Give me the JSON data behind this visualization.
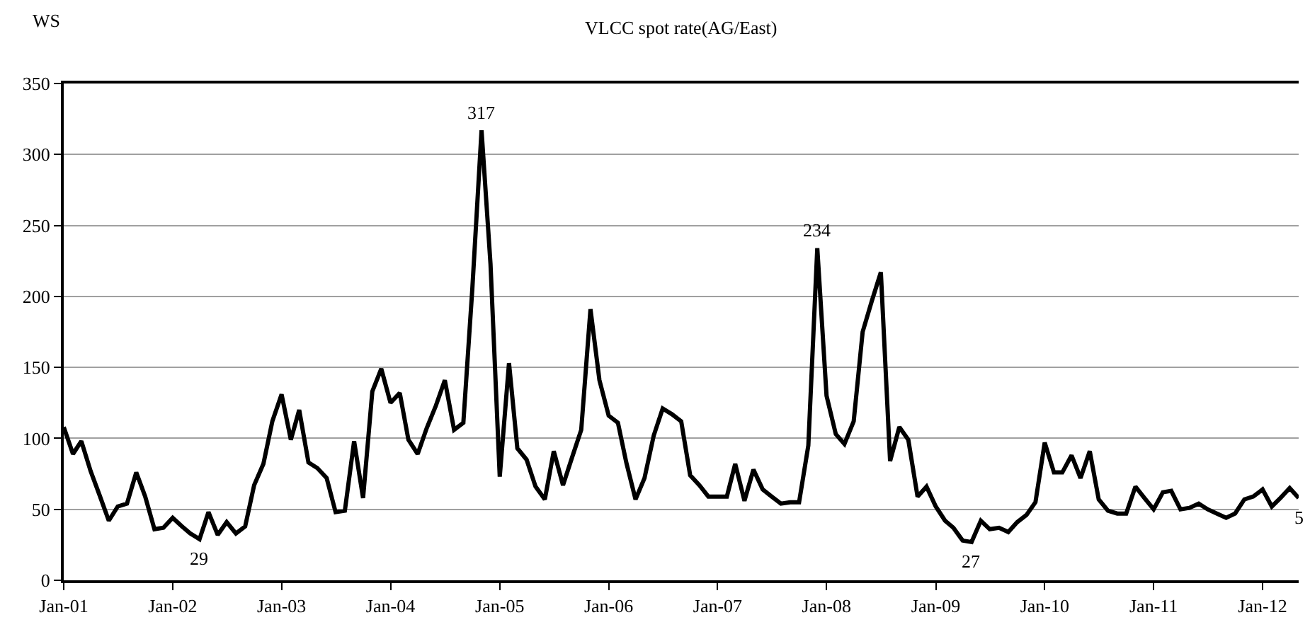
{
  "chart_data": {
    "type": "line",
    "title": "VLCC spot rate(AG/East)",
    "ylabel": "WS",
    "x": [
      "2001-01",
      "2001-02",
      "2001-03",
      "2001-04",
      "2001-05",
      "2001-06",
      "2001-07",
      "2001-08",
      "2001-09",
      "2001-10",
      "2001-11",
      "2001-12",
      "2002-01",
      "2002-02",
      "2002-03",
      "2002-04",
      "2002-05",
      "2002-06",
      "2002-07",
      "2002-08",
      "2002-09",
      "2002-10",
      "2002-11",
      "2002-12",
      "2003-01",
      "2003-02",
      "2003-03",
      "2003-04",
      "2003-05",
      "2003-06",
      "2003-07",
      "2003-08",
      "2003-09",
      "2003-10",
      "2003-11",
      "2003-12",
      "2004-01",
      "2004-02",
      "2004-03",
      "2004-04",
      "2004-05",
      "2004-06",
      "2004-07",
      "2004-08",
      "2004-09",
      "2004-10",
      "2004-11",
      "2004-12",
      "2005-01",
      "2005-02",
      "2005-03",
      "2005-04",
      "2005-05",
      "2005-06",
      "2005-07",
      "2005-08",
      "2005-09",
      "2005-10",
      "2005-11",
      "2005-12",
      "2006-01",
      "2006-02",
      "2006-03",
      "2006-04",
      "2006-05",
      "2006-06",
      "2006-07",
      "2006-08",
      "2006-09",
      "2006-10",
      "2006-11",
      "2006-12",
      "2007-01",
      "2007-02",
      "2007-03",
      "2007-04",
      "2007-05",
      "2007-06",
      "2007-07",
      "2007-08",
      "2007-09",
      "2007-10",
      "2007-11",
      "2007-12",
      "2008-01",
      "2008-02",
      "2008-03",
      "2008-04",
      "2008-05",
      "2008-06",
      "2008-07",
      "2008-08",
      "2008-09",
      "2008-10",
      "2008-11",
      "2008-12",
      "2009-01",
      "2009-02",
      "2009-03",
      "2009-04",
      "2009-05",
      "2009-06",
      "2009-07",
      "2009-08",
      "2009-09",
      "2009-10",
      "2009-11",
      "2009-12",
      "2010-01",
      "2010-02",
      "2010-03",
      "2010-04",
      "2010-05",
      "2010-06",
      "2010-07",
      "2010-08",
      "2010-09",
      "2010-10",
      "2010-11",
      "2010-12",
      "2011-01",
      "2011-02",
      "2011-03",
      "2011-04",
      "2011-05",
      "2011-06",
      "2011-07",
      "2011-08",
      "2011-09",
      "2011-10",
      "2011-11",
      "2011-12",
      "2012-01",
      "2012-02",
      "2012-03",
      "2012-04",
      "2012-05"
    ],
    "series": [
      {
        "color": "#000000",
        "values": [
          108,
          89,
          98,
          77,
          60,
          42,
          52,
          54,
          76,
          59,
          36,
          37,
          44,
          38,
          33,
          29,
          48,
          32,
          41,
          33,
          38,
          67,
          82,
          112,
          131,
          99,
          120,
          83,
          79,
          72,
          48,
          49,
          98,
          58,
          133,
          149,
          125,
          132,
          99,
          89,
          107,
          123,
          141,
          106,
          111,
          205,
          317,
          223,
          73,
          153,
          93,
          85,
          66,
          57,
          91,
          67,
          87,
          106,
          191,
          141,
          116,
          111,
          83,
          57,
          72,
          102,
          121,
          117,
          112,
          74,
          67,
          59,
          59,
          59,
          82,
          56,
          78,
          64,
          59,
          54,
          55,
          55,
          95,
          234,
          130,
          103,
          96,
          112,
          175,
          197,
          217,
          84,
          108,
          99,
          59,
          66,
          52,
          42,
          37,
          28,
          27,
          42,
          36,
          37,
          34,
          41,
          46,
          55,
          97,
          76,
          76,
          88,
          72,
          91,
          57,
          49,
          47,
          47,
          66,
          58,
          50,
          62,
          63,
          50,
          51,
          54,
          50,
          47,
          44,
          47,
          57,
          59,
          64,
          52,
          58,
          65,
          58
        ]
      }
    ],
    "xlim": [
      "2001-01",
      "2012-05"
    ],
    "xticks": [
      {
        "value": "2001-01",
        "label": "Jan-01"
      },
      {
        "value": "2002-01",
        "label": "Jan-02"
      },
      {
        "value": "2003-01",
        "label": "Jan-03"
      },
      {
        "value": "2004-01",
        "label": "Jan-04"
      },
      {
        "value": "2005-01",
        "label": "Jan-05"
      },
      {
        "value": "2006-01",
        "label": "Jan-06"
      },
      {
        "value": "2007-01",
        "label": "Jan-07"
      },
      {
        "value": "2008-01",
        "label": "Jan-08"
      },
      {
        "value": "2009-01",
        "label": "Jan-09"
      },
      {
        "value": "2010-01",
        "label": "Jan-10"
      },
      {
        "value": "2011-01",
        "label": "Jan-11"
      },
      {
        "value": "2012-01",
        "label": "Jan-12"
      }
    ],
    "ylim": [
      0,
      350
    ],
    "yticks": [
      0,
      50,
      100,
      150,
      200,
      250,
      300,
      350
    ],
    "grid": "y",
    "marker": "none",
    "line_style": "solid",
    "annotations": [
      {
        "text": "29",
        "x": "2002-04",
        "y": 29
      },
      {
        "text": "317",
        "x": "2004-11",
        "y": 317
      },
      {
        "text": "234",
        "x": "2007-12",
        "y": 234
      },
      {
        "text": "27",
        "x": "2009-05",
        "y": 27
      },
      {
        "text": "5",
        "x": "2012-05",
        "y": 58
      }
    ]
  }
}
